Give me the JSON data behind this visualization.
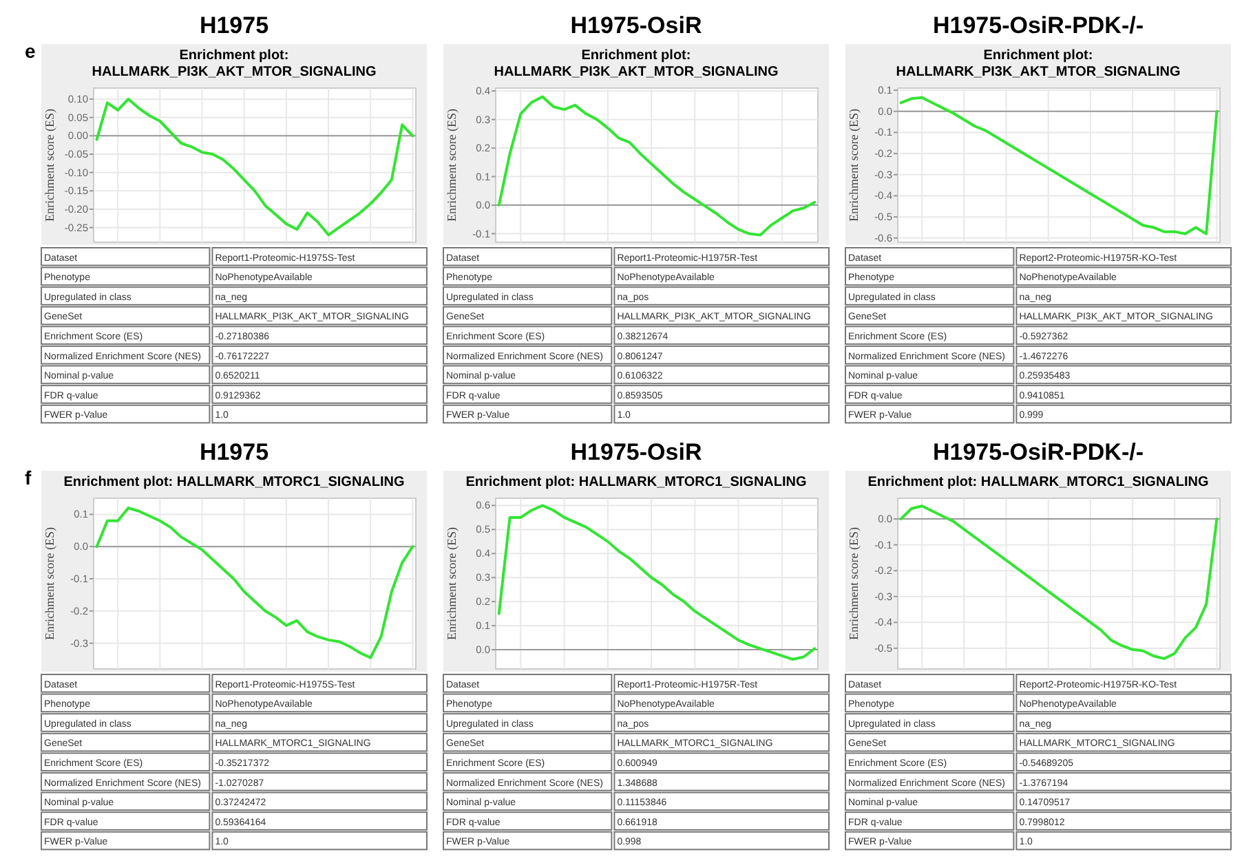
{
  "chart_data": [
    {
      "type": "line",
      "title": "H1975",
      "subtitle": "Enrichment plot: HALLMARK_PI3K_AKT_MTOR_SIGNALING",
      "ylabel": "Enrichment score (ES)",
      "annotations": [
        "e"
      ],
      "categories": [
        null,
        null,
        null,
        null,
        null,
        null,
        null,
        null,
        null,
        null,
        null,
        null,
        null,
        null,
        null,
        null,
        null,
        null,
        null,
        null,
        null,
        null,
        null,
        null,
        null,
        null,
        null,
        null,
        null,
        null,
        null
      ],
      "series": [
        {
          "color": "#33e533",
          "values": [
            -0.01,
            0.09,
            0.07,
            0.1,
            0.075,
            0.055,
            0.04,
            0.01,
            -0.02,
            -0.03,
            -0.045,
            -0.05,
            -0.065,
            -0.09,
            -0.12,
            -0.15,
            -0.19,
            -0.215,
            -0.24,
            -0.255,
            -0.21,
            -0.235,
            -0.27,
            -0.25,
            -0.23,
            -0.21,
            -0.185,
            -0.155,
            -0.12,
            0.03,
            0.0
          ]
        }
      ],
      "ylim": [
        -0.29,
        0.13
      ],
      "yticks": [
        {
          "value": 0.1,
          "label": "0.10"
        },
        {
          "value": 0.05,
          "label": "0.05"
        },
        {
          "value": 0,
          "label": "0.00"
        },
        {
          "value": -0.05,
          "label": "-0.05"
        },
        {
          "value": -0.1,
          "label": "-0.10"
        },
        {
          "value": -0.15,
          "label": "-0.15"
        },
        {
          "value": -0.2,
          "label": "-0.20"
        },
        {
          "value": -0.25,
          "label": "-0.25"
        }
      ],
      "grid": true,
      "tick_labels": "y",
      "ref_lines": [
        {
          "axis": "y",
          "value": 0,
          "color": "#999999"
        }
      ]
    },
    {
      "type": "other",
      "annotations": [
        "Dataset",
        "Report1-Proteomic-H1975S-Test",
        "Phenotype",
        "NoPhenotypeAvailable",
        "Upregulated in class",
        "na_neg",
        "GeneSet",
        "HALLMARK_PI3K_AKT_MTOR_SIGNALING",
        "Enrichment Score (ES)",
        "-0.27180386",
        "Normalized Enrichment Score (NES)",
        "-0.76172227",
        "Nominal p-value",
        "0.6520211",
        "FDR q-value",
        "0.9129362",
        "FWER p-Value",
        "1.0"
      ]
    },
    {
      "type": "line",
      "title": "H1975-OsiR",
      "subtitle": "Enrichment plot: HALLMARK_PI3K_AKT_MTOR_SIGNALING",
      "ylabel": "Enrichment score (ES)",
      "categories": [
        null,
        null,
        null,
        null,
        null,
        null,
        null,
        null,
        null,
        null,
        null,
        null,
        null,
        null,
        null,
        null,
        null,
        null,
        null,
        null,
        null,
        null,
        null,
        null,
        null,
        null,
        null,
        null,
        null,
        null
      ],
      "series": [
        {
          "color": "#33e533",
          "values": [
            0.0,
            0.18,
            0.32,
            0.36,
            0.38,
            0.345,
            0.335,
            0.35,
            0.32,
            0.3,
            0.27,
            0.235,
            0.22,
            0.18,
            0.145,
            0.11,
            0.075,
            0.045,
            0.02,
            -0.005,
            -0.03,
            -0.06,
            -0.085,
            -0.1,
            -0.105,
            -0.07,
            -0.045,
            -0.02,
            -0.01,
            0.01
          ]
        }
      ],
      "ylim": [
        -0.13,
        0.41
      ],
      "yticks": [
        {
          "value": 0.4,
          "label": "0.4"
        },
        {
          "value": 0.3,
          "label": "0.3"
        },
        {
          "value": 0.2,
          "label": "0.2"
        },
        {
          "value": 0.1,
          "label": "0.1"
        },
        {
          "value": 0,
          "label": "0.0"
        },
        {
          "value": -0.1,
          "label": "-0.1"
        }
      ],
      "grid": true,
      "tick_labels": "y",
      "ref_lines": [
        {
          "axis": "y",
          "value": 0,
          "color": "#999999"
        }
      ]
    },
    {
      "type": "other",
      "annotations": [
        "Dataset",
        "Report1-Proteomic-H1975R-Test",
        "Phenotype",
        "NoPhenotypeAvailable",
        "Upregulated in class",
        "na_pos",
        "GeneSet",
        "HALLMARK_PI3K_AKT_MTOR_SIGNALING",
        "Enrichment Score (ES)",
        "0.38212674",
        "Normalized Enrichment Score (NES)",
        "0.8061247",
        "Nominal p-value",
        "0.6106322",
        "FDR q-value",
        "0.8593505",
        "FWER p-Value",
        "1.0"
      ]
    },
    {
      "type": "line",
      "title": "H1975-OsiR-PDK-/-",
      "subtitle": "Enrichment plot: HALLMARK_PI3K_AKT_MTOR_SIGNALING",
      "ylabel": "Enrichment score (ES)",
      "categories": [
        null,
        null,
        null,
        null,
        null,
        null,
        null,
        null,
        null,
        null,
        null,
        null,
        null,
        null,
        null,
        null,
        null,
        null,
        null,
        null,
        null,
        null,
        null,
        null,
        null,
        null,
        null,
        null,
        null,
        null,
        null
      ],
      "series": [
        {
          "color": "#33e533",
          "values": [
            0.04,
            0.06,
            0.065,
            0.04,
            0.015,
            -0.01,
            -0.04,
            -0.07,
            -0.09,
            -0.12,
            -0.15,
            -0.18,
            -0.21,
            -0.24,
            -0.27,
            -0.3,
            -0.33,
            -0.36,
            -0.39,
            -0.42,
            -0.45,
            -0.48,
            -0.51,
            -0.54,
            -0.55,
            -0.57,
            -0.57,
            -0.58,
            -0.55,
            -0.58,
            0.0
          ]
        }
      ],
      "ylim": [
        -0.62,
        0.11
      ],
      "yticks": [
        {
          "value": 0.1,
          "label": "0.1"
        },
        {
          "value": 0,
          "label": "0.0"
        },
        {
          "value": -0.1,
          "label": "-0.1"
        },
        {
          "value": -0.2,
          "label": "-0.2"
        },
        {
          "value": -0.3,
          "label": "-0.3"
        },
        {
          "value": -0.4,
          "label": "-0.4"
        },
        {
          "value": -0.5,
          "label": "-0.5"
        },
        {
          "value": -0.6,
          "label": "-0.6"
        }
      ],
      "grid": true,
      "tick_labels": "y",
      "ref_lines": [
        {
          "axis": "y",
          "value": 0,
          "color": "#999999"
        }
      ]
    },
    {
      "type": "other",
      "annotations": [
        "Dataset",
        "Report2-Proteomic-H1975R-KO-Test",
        "Phenotype",
        "NoPhenotypeAvailable",
        "Upregulated in class",
        "na_neg",
        "GeneSet",
        "HALLMARK_PI3K_AKT_MTOR_SIGNALING",
        "Enrichment Score (ES)",
        "-0.5927362",
        "Normalized Enrichment Score (NES)",
        "-1.4672276",
        "Nominal p-value",
        "0.25935483",
        "FDR q-value",
        "0.9410851",
        "FWER p-Value",
        "0.999"
      ]
    },
    {
      "type": "line",
      "title": "H1975",
      "subtitle": "Enrichment plot: HALLMARK_MTORC1_SIGNALING",
      "ylabel": "Enrichment score (ES)",
      "annotations": [
        "f"
      ],
      "categories": [
        null,
        null,
        null,
        null,
        null,
        null,
        null,
        null,
        null,
        null,
        null,
        null,
        null,
        null,
        null,
        null,
        null,
        null,
        null,
        null,
        null,
        null,
        null,
        null,
        null,
        null,
        null,
        null,
        null,
        null,
        null
      ],
      "series": [
        {
          "color": "#33e533",
          "values": [
            0.0,
            0.08,
            0.08,
            0.12,
            0.11,
            0.095,
            0.08,
            0.06,
            0.03,
            0.01,
            -0.01,
            -0.04,
            -0.07,
            -0.1,
            -0.14,
            -0.17,
            -0.2,
            -0.22,
            -0.245,
            -0.23,
            -0.265,
            -0.28,
            -0.29,
            -0.295,
            -0.31,
            -0.33,
            -0.345,
            -0.28,
            -0.14,
            -0.05,
            0.0
          ]
        }
      ],
      "ylim": [
        -0.38,
        0.15
      ],
      "yticks": [
        {
          "value": 0.1,
          "label": "0.1"
        },
        {
          "value": 0,
          "label": "0.0"
        },
        {
          "value": -0.1,
          "label": "-0.1"
        },
        {
          "value": -0.2,
          "label": "-0.2"
        },
        {
          "value": -0.3,
          "label": "-0.3"
        }
      ],
      "grid": true,
      "tick_labels": "y",
      "ref_lines": [
        {
          "axis": "y",
          "value": 0,
          "color": "#999999"
        }
      ]
    },
    {
      "type": "other",
      "annotations": [
        "Dataset",
        "Report1-Proteomic-H1975S-Test",
        "Phenotype",
        "NoPhenotypeAvailable",
        "Upregulated in class",
        "na_neg",
        "GeneSet",
        "HALLMARK_MTORC1_SIGNALING",
        "Enrichment Score (ES)",
        "-0.35217372",
        "Normalized Enrichment Score (NES)",
        "-1.0270287",
        "Nominal p-value",
        "0.37242472",
        "FDR q-value",
        "0.59364164",
        "FWER p-Value",
        "1.0"
      ]
    },
    {
      "type": "line",
      "title": "H1975-OsiR",
      "subtitle": "Enrichment plot: HALLMARK_MTORC1_SIGNALING",
      "ylabel": "Enrichment score (ES)",
      "categories": [
        null,
        null,
        null,
        null,
        null,
        null,
        null,
        null,
        null,
        null,
        null,
        null,
        null,
        null,
        null,
        null,
        null,
        null,
        null,
        null,
        null,
        null,
        null,
        null,
        null,
        null,
        null,
        null,
        null,
        null
      ],
      "series": [
        {
          "color": "#33e533",
          "values": [
            0.15,
            0.55,
            0.55,
            0.58,
            0.6,
            0.58,
            0.55,
            0.53,
            0.51,
            0.48,
            0.45,
            0.41,
            0.38,
            0.34,
            0.3,
            0.27,
            0.23,
            0.2,
            0.16,
            0.13,
            0.1,
            0.07,
            0.04,
            0.02,
            0.005,
            -0.01,
            -0.025,
            -0.04,
            -0.03,
            0.005
          ]
        }
      ],
      "ylim": [
        -0.08,
        0.63
      ],
      "yticks": [
        {
          "value": 0.6,
          "label": "0.6"
        },
        {
          "value": 0.5,
          "label": "0.5"
        },
        {
          "value": 0.4,
          "label": "0.4"
        },
        {
          "value": 0.3,
          "label": "0.3"
        },
        {
          "value": 0.2,
          "label": "0.2"
        },
        {
          "value": 0.1,
          "label": "0.1"
        },
        {
          "value": 0,
          "label": "0.0"
        }
      ],
      "grid": true,
      "tick_labels": "y",
      "ref_lines": [
        {
          "axis": "y",
          "value": 0,
          "color": "#999999"
        }
      ]
    },
    {
      "type": "other",
      "annotations": [
        "Dataset",
        "Report1-Proteomic-H1975R-Test",
        "Phenotype",
        "NoPhenotypeAvailable",
        "Upregulated in class",
        "na_pos",
        "GeneSet",
        "HALLMARK_MTORC1_SIGNALING",
        "Enrichment Score (ES)",
        "0.600949",
        "Normalized Enrichment Score (NES)",
        "1.348688",
        "Nominal p-value",
        "0.11153846",
        "FDR q-value",
        "0.661918",
        "FWER p-Value",
        "0.998"
      ]
    },
    {
      "type": "line",
      "title": "H1975-OsiR-PDK-/-",
      "subtitle": "Enrichment plot: HALLMARK_MTORC1_SIGNALING",
      "ylabel": "Enrichment score (ES)",
      "categories": [
        null,
        null,
        null,
        null,
        null,
        null,
        null,
        null,
        null,
        null,
        null,
        null,
        null,
        null,
        null,
        null,
        null,
        null,
        null,
        null,
        null,
        null,
        null,
        null,
        null,
        null,
        null,
        null,
        null,
        null,
        null
      ],
      "series": [
        {
          "color": "#33e533",
          "values": [
            0.0,
            0.04,
            0.05,
            0.03,
            0.01,
            -0.01,
            -0.04,
            -0.07,
            -0.1,
            -0.13,
            -0.16,
            -0.19,
            -0.22,
            -0.25,
            -0.28,
            -0.31,
            -0.34,
            -0.37,
            -0.4,
            -0.43,
            -0.47,
            -0.49,
            -0.505,
            -0.51,
            -0.53,
            -0.54,
            -0.52,
            -0.46,
            -0.42,
            -0.33,
            0.0
          ]
        }
      ],
      "ylim": [
        -0.58,
        0.08
      ],
      "yticks": [
        {
          "value": 0,
          "label": "0.0"
        },
        {
          "value": -0.1,
          "label": "-0.1"
        },
        {
          "value": -0.2,
          "label": "-0.2"
        },
        {
          "value": -0.3,
          "label": "-0.3"
        },
        {
          "value": -0.4,
          "label": "-0.4"
        },
        {
          "value": -0.5,
          "label": "-0.5"
        }
      ],
      "grid": true,
      "tick_labels": "y",
      "ref_lines": [
        {
          "axis": "y",
          "value": 0,
          "color": "#999999"
        }
      ]
    },
    {
      "type": "other",
      "annotations": [
        "Dataset",
        "Report2-Proteomic-H1975R-KO-Test",
        "Phenotype",
        "NoPhenotypeAvailable",
        "Upregulated in class",
        "na_neg",
        "GeneSet",
        "HALLMARK_MTORC1_SIGNALING",
        "Enrichment Score (ES)",
        "-0.54689205",
        "Normalized Enrichment Score (NES)",
        "-1.3767194",
        "Nominal p-value",
        "0.14709517",
        "FDR q-value",
        "0.7998012",
        "FWER p-Value",
        "1.0"
      ]
    }
  ]
}
